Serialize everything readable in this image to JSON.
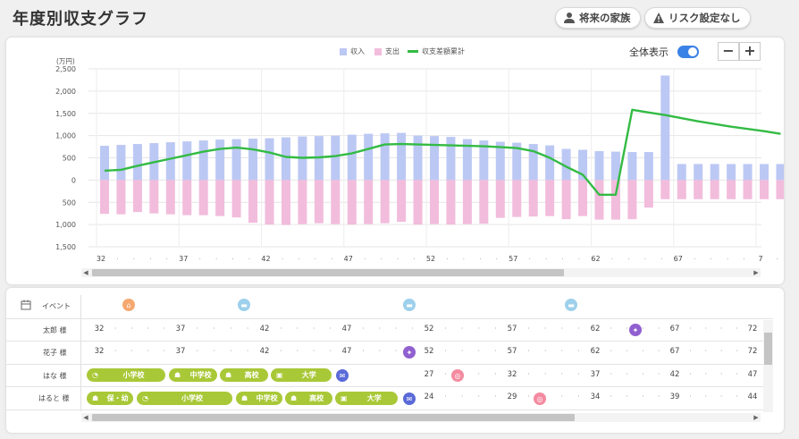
{
  "header": {
    "title": "年度別収支グラフ",
    "family_button": "将来の家族",
    "risk_button": "リスク設定なし"
  },
  "controls": {
    "show_all_label": "全体表示",
    "show_all_enabled": true,
    "zoom_out": "−",
    "zoom_in": "+"
  },
  "chart_data": {
    "type": "bar",
    "legend": [
      "収入",
      "支出",
      "収支差額累計"
    ],
    "ylabel": "(万円)",
    "ylim": [
      -1500,
      2500
    ],
    "yticks": [
      2500,
      2000,
      1500,
      1000,
      500,
      0,
      -500,
      -1000,
      -1500
    ],
    "ytick_labels": [
      "2,500",
      "2,000",
      "1,500",
      "1,000",
      "500",
      "0",
      "500",
      "1,000",
      "1,500"
    ],
    "x": [
      32,
      33,
      34,
      35,
      36,
      37,
      38,
      39,
      40,
      41,
      42,
      43,
      44,
      45,
      46,
      47,
      48,
      49,
      50,
      51,
      52,
      53,
      54,
      55,
      56,
      57,
      58,
      59,
      60,
      61,
      62,
      63,
      64,
      65,
      66,
      67,
      68,
      69,
      70,
      71,
      72,
      73
    ],
    "xtick_labels": [
      "32",
      "37",
      "42",
      "47",
      "52",
      "57",
      "62",
      "67",
      "7"
    ],
    "series": [
      {
        "name": "収入",
        "color": "#bcc8f4",
        "values": [
          770,
          790,
          810,
          830,
          850,
          870,
          890,
          910,
          920,
          930,
          940,
          960,
          980,
          990,
          1000,
          1020,
          1040,
          1050,
          1060,
          1000,
          990,
          970,
          920,
          890,
          860,
          840,
          810,
          780,
          700,
          680,
          650,
          640,
          630,
          630,
          2350,
          360,
          360,
          360,
          360,
          360,
          360,
          360
        ]
      },
      {
        "name": "支出",
        "color": "#f2bcdc",
        "values": [
          -760,
          -770,
          -720,
          -750,
          -770,
          -790,
          -790,
          -810,
          -840,
          -960,
          -1000,
          -1010,
          -990,
          -970,
          -990,
          -1000,
          -990,
          -970,
          -940,
          -1000,
          -990,
          -1000,
          -990,
          -980,
          -850,
          -830,
          -820,
          -810,
          -880,
          -810,
          -890,
          -890,
          -880,
          -620,
          -430,
          -430,
          -430,
          -430,
          -430,
          -430,
          -430,
          -430
        ]
      },
      {
        "name": "収支差額累計",
        "color": "#33bb44",
        "values": [
          210,
          230,
          320,
          400,
          480,
          560,
          640,
          700,
          730,
          690,
          620,
          520,
          500,
          510,
          540,
          600,
          700,
          800,
          810,
          800,
          790,
          780,
          770,
          760,
          740,
          720,
          650,
          500,
          300,
          120,
          -330,
          -330,
          1580,
          1520,
          1460,
          1390,
          1320,
          1260,
          1200,
          1150,
          1100,
          1040
        ]
      }
    ]
  },
  "events": {
    "header_label": "イベント",
    "people": [
      {
        "name": "太郎 様",
        "ticks": [
          "32",
          "37",
          "42",
          "47",
          "52",
          "57",
          "62",
          "67",
          "72"
        ]
      },
      {
        "name": "花子 様",
        "ticks": [
          "32",
          "37",
          "42",
          "47",
          "52",
          "57",
          "62",
          "67",
          "72"
        ]
      },
      {
        "name": "はな 様",
        "ticks": [
          "27",
          "32",
          "37",
          "42",
          "47"
        ],
        "stages": [
          "小学校",
          "中学校",
          "高校",
          "大学"
        ]
      },
      {
        "name": "はると 様",
        "ticks": [
          "24",
          "29",
          "34",
          "39",
          "44"
        ],
        "stages": [
          "保・幼",
          "小学校",
          "中学校",
          "高校",
          "大学"
        ]
      }
    ]
  }
}
